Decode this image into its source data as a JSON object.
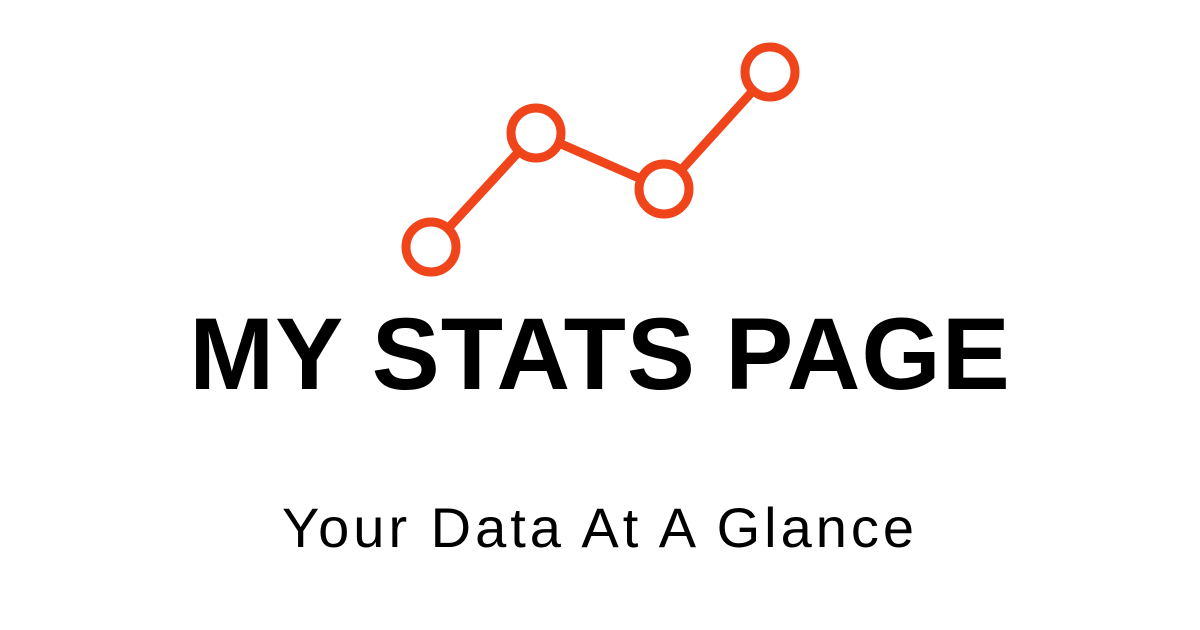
{
  "header": {
    "title": "MY STATS PAGE",
    "subtitle": "Your Data At A Glance"
  },
  "logo": {
    "icon": "line-chart-icon",
    "color": "#f0441b"
  },
  "colors": {
    "background": "#ffffff",
    "text": "#000000",
    "accent": "#f0441b"
  }
}
